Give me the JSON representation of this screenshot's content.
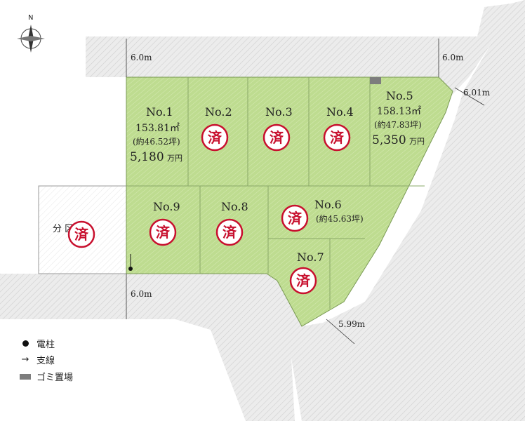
{
  "compass": {
    "north_label": "N"
  },
  "roads": {
    "top_left_width": "6.0m",
    "top_right_width": "6.0m",
    "right_upper_width": "6.01m",
    "bottom_left_width": "6.0m",
    "bottom_right_width": "5.99m"
  },
  "sold_mark": "済",
  "lots": [
    {
      "no": "No.1",
      "area": "153.81㎡",
      "tsubo": "(約46.52坪)",
      "price": "5,180",
      "unit": "万円"
    },
    {
      "no": "No.2",
      "area": "",
      "tsubo": "",
      "price": "",
      "unit": ""
    },
    {
      "no": "No.3",
      "area": "",
      "tsubo": "",
      "price": "",
      "unit": ""
    },
    {
      "no": "No.4",
      "area": "",
      "tsubo": "",
      "price": "",
      "unit": ""
    },
    {
      "no": "No.5",
      "area": "158.13㎡",
      "tsubo": "(約47.83坪)",
      "price": "5,350",
      "unit": "万円"
    },
    {
      "no": "No.6",
      "area": "",
      "tsubo": "(約45.63坪)",
      "price": "",
      "unit": ""
    },
    {
      "no": "No.7",
      "area": "",
      "tsubo": "",
      "price": "",
      "unit": ""
    },
    {
      "no": "No.8",
      "area": "",
      "tsubo": "",
      "price": "",
      "unit": ""
    },
    {
      "no": "No.9",
      "area": "",
      "tsubo": "",
      "price": "",
      "unit": ""
    }
  ],
  "separate_lot_label": "分 区画",
  "legend": [
    {
      "icon": "utility-pole-dot",
      "label": "電柱"
    },
    {
      "icon": "guy-wire-arrow",
      "label": "支線"
    },
    {
      "icon": "garbage-area-box",
      "label": "ゴミ置場"
    }
  ],
  "colors": {
    "lot_fill": "#b9d98a",
    "road_fill": "#e4e4e4",
    "stamp_red": "#c8102e",
    "garbage_box": "#7d7d7d"
  }
}
